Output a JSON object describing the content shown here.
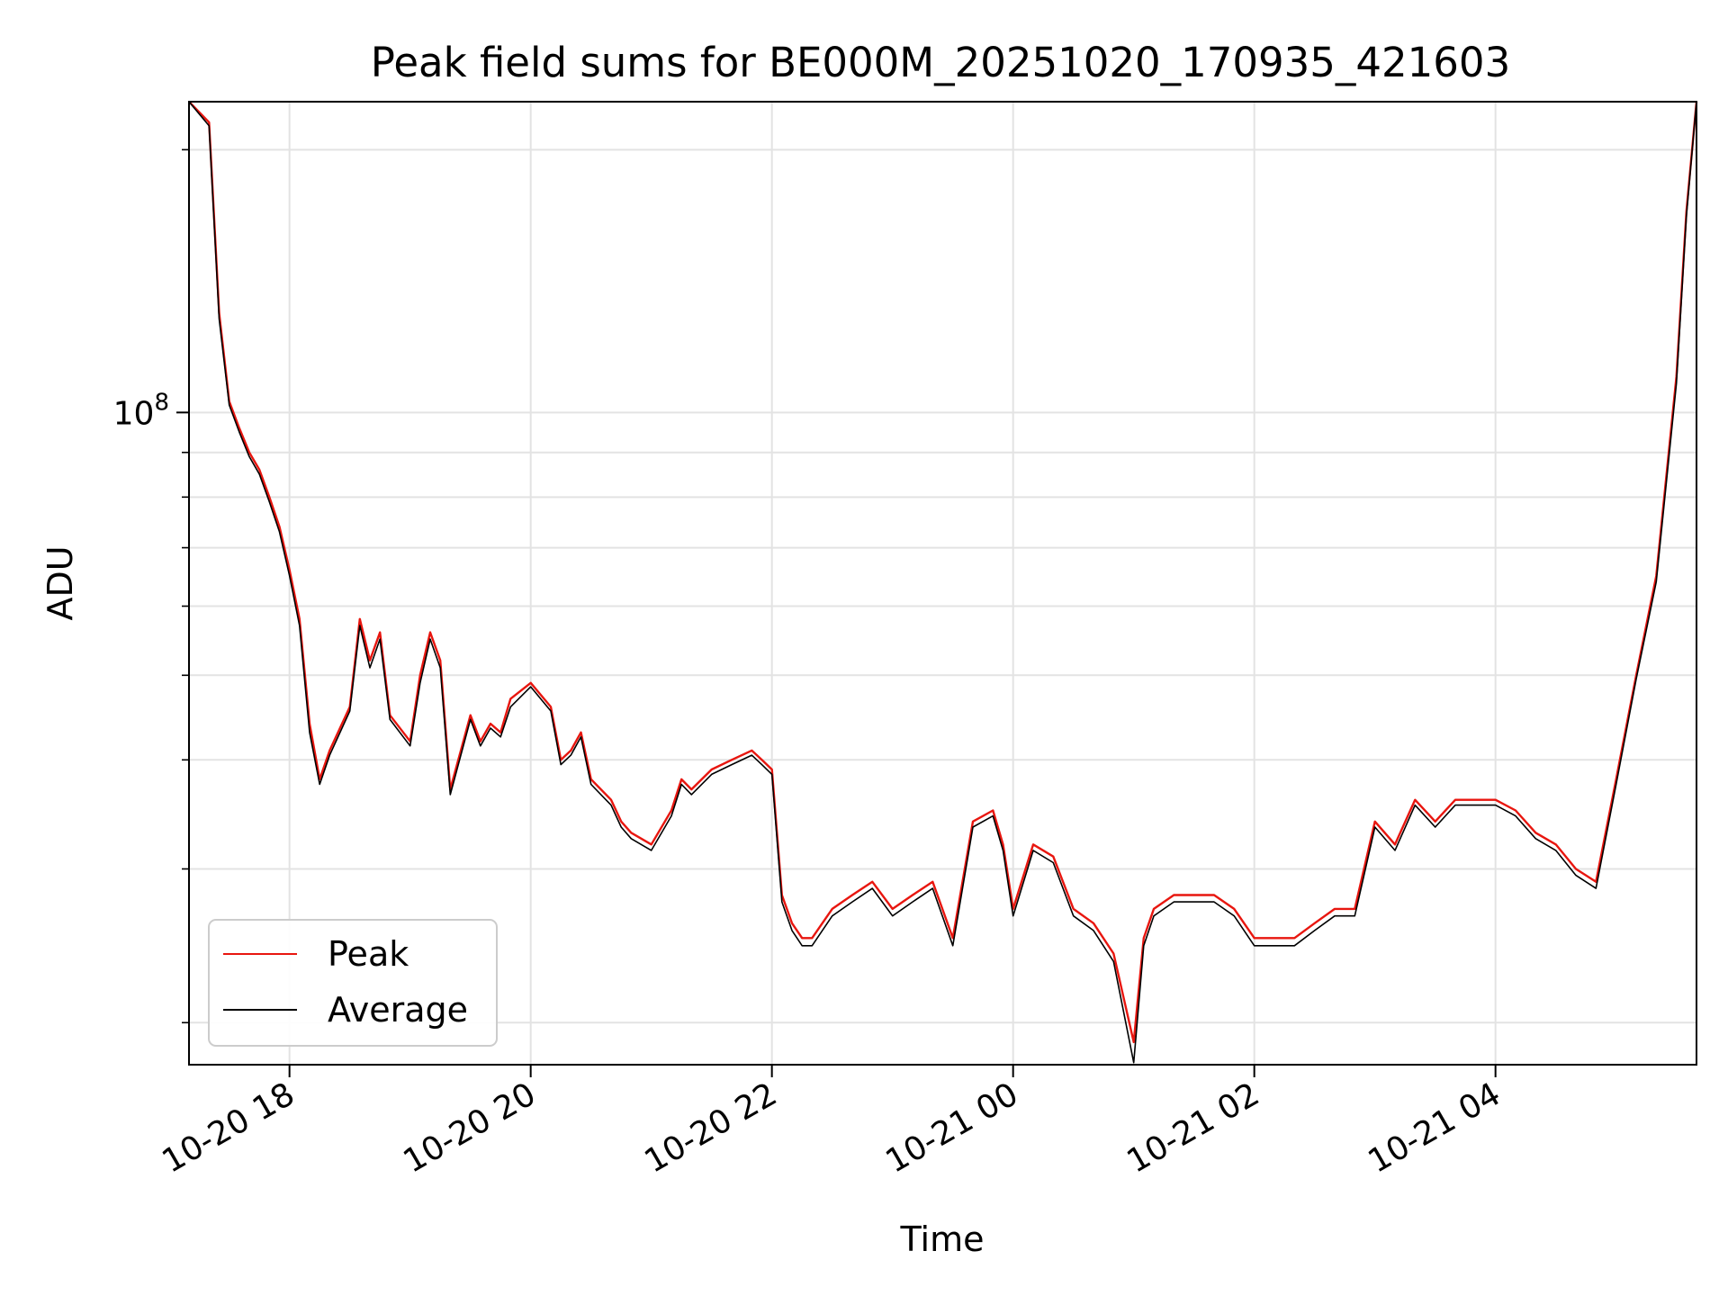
{
  "chart_data": {
    "type": "line",
    "title": "Peak field sums for BE000M_20251020_170935_421603",
    "xlabel": "Time",
    "ylabel": "ADU",
    "y_scale": "log",
    "xlim": [
      "2025-10-20 17:10",
      "2025-10-21 05:40"
    ],
    "ylim": [
      17900000,
      227000000
    ],
    "grid": true,
    "legend_position": "lower-left",
    "x_ticks": [
      "10-20 18",
      "10-20 20",
      "10-20 22",
      "10-21 00",
      "10-21 02",
      "10-21 04"
    ],
    "x_tick_times": [
      "2025-10-20 18:00",
      "2025-10-20 20:00",
      "2025-10-20 22:00",
      "2025-10-21 00:00",
      "2025-10-21 02:00",
      "2025-10-21 04:00"
    ],
    "y_major_ticks": [
      {
        "value": 100000000,
        "label_base": "10",
        "label_exp": "8"
      }
    ],
    "y_minor_ticks": [
      20000000,
      30000000,
      40000000,
      50000000,
      60000000,
      70000000,
      80000000,
      90000000,
      200000000
    ],
    "colors": {
      "peak": "#e8160f",
      "average": "#000000"
    },
    "series": [
      {
        "name": "Peak",
        "color": "#e8160f",
        "x": [
          "2025-10-20 17:10",
          "2025-10-20 17:20",
          "2025-10-20 17:25",
          "2025-10-20 17:30",
          "2025-10-20 17:35",
          "2025-10-20 17:40",
          "2025-10-20 17:45",
          "2025-10-20 17:50",
          "2025-10-20 17:55",
          "2025-10-20 18:00",
          "2025-10-20 18:05",
          "2025-10-20 18:10",
          "2025-10-20 18:15",
          "2025-10-20 18:20",
          "2025-10-20 18:30",
          "2025-10-20 18:35",
          "2025-10-20 18:40",
          "2025-10-20 18:45",
          "2025-10-20 18:50",
          "2025-10-20 19:00",
          "2025-10-20 19:05",
          "2025-10-20 19:10",
          "2025-10-20 19:15",
          "2025-10-20 19:20",
          "2025-10-20 19:30",
          "2025-10-20 19:35",
          "2025-10-20 19:40",
          "2025-10-20 19:45",
          "2025-10-20 19:50",
          "2025-10-20 20:00",
          "2025-10-20 20:10",
          "2025-10-20 20:15",
          "2025-10-20 20:20",
          "2025-10-20 20:25",
          "2025-10-20 20:30",
          "2025-10-20 20:40",
          "2025-10-20 20:45",
          "2025-10-20 20:50",
          "2025-10-20 21:00",
          "2025-10-20 21:10",
          "2025-10-20 21:15",
          "2025-10-20 21:20",
          "2025-10-20 21:30",
          "2025-10-20 21:40",
          "2025-10-20 21:50",
          "2025-10-20 21:55",
          "2025-10-20 22:00",
          "2025-10-20 22:05",
          "2025-10-20 22:10",
          "2025-10-20 22:15",
          "2025-10-20 22:20",
          "2025-10-20 22:30",
          "2025-10-20 22:40",
          "2025-10-20 22:50",
          "2025-10-20 23:00",
          "2025-10-20 23:10",
          "2025-10-20 23:20",
          "2025-10-20 23:30",
          "2025-10-20 23:40",
          "2025-10-20 23:50",
          "2025-10-20 23:55",
          "2025-10-21 00:00",
          "2025-10-21 00:10",
          "2025-10-21 00:20",
          "2025-10-21 00:30",
          "2025-10-21 00:40",
          "2025-10-21 00:50",
          "2025-10-21 01:00",
          "2025-10-21 01:05",
          "2025-10-21 01:10",
          "2025-10-21 01:20",
          "2025-10-21 01:30",
          "2025-10-21 01:40",
          "2025-10-21 01:50",
          "2025-10-21 02:00",
          "2025-10-21 02:10",
          "2025-10-21 02:20",
          "2025-10-21 02:30",
          "2025-10-21 02:40",
          "2025-10-21 02:50",
          "2025-10-21 03:00",
          "2025-10-21 03:10",
          "2025-10-21 03:20",
          "2025-10-21 03:30",
          "2025-10-21 03:40",
          "2025-10-21 03:50",
          "2025-10-21 04:00",
          "2025-10-21 04:10",
          "2025-10-21 04:20",
          "2025-10-21 04:30",
          "2025-10-21 04:40",
          "2025-10-21 04:50",
          "2025-10-21 05:00",
          "2025-10-21 05:10",
          "2025-10-21 05:20",
          "2025-10-21 05:30",
          "2025-10-21 05:35",
          "2025-10-21 05:40"
        ],
        "values": [
          227000000,
          215000000,
          130000000,
          103000000,
          96000000,
          90000000,
          86000000,
          80000000,
          74000000,
          66000000,
          58000000,
          44000000,
          38000000,
          41000000,
          46000000,
          58000000,
          52000000,
          56000000,
          45000000,
          42000000,
          50000000,
          56000000,
          52000000,
          37000000,
          45000000,
          42000000,
          44000000,
          43000000,
          47000000,
          49000000,
          46000000,
          40000000,
          41000000,
          43000000,
          38000000,
          36000000,
          34000000,
          33000000,
          32000000,
          35000000,
          38000000,
          37000000,
          39000000,
          40000000,
          41000000,
          40000000,
          39000000,
          28000000,
          26000000,
          25000000,
          25000000,
          27000000,
          28000000,
          29000000,
          27000000,
          28000000,
          29000000,
          25000000,
          34000000,
          35000000,
          32000000,
          27000000,
          32000000,
          31000000,
          27000000,
          26000000,
          24000000,
          19000000,
          25000000,
          27000000,
          28000000,
          28000000,
          28000000,
          27000000,
          25000000,
          25000000,
          25000000,
          26000000,
          27000000,
          27000000,
          34000000,
          32000000,
          36000000,
          34000000,
          36000000,
          36000000,
          36000000,
          35000000,
          33000000,
          32000000,
          30000000,
          29000000,
          38000000,
          50000000,
          65000000,
          110000000,
          170000000,
          227000000
        ]
      },
      {
        "name": "Average",
        "color": "#000000",
        "x": [
          "2025-10-20 17:10",
          "2025-10-20 17:20",
          "2025-10-20 17:25",
          "2025-10-20 17:30",
          "2025-10-20 17:35",
          "2025-10-20 17:40",
          "2025-10-20 17:45",
          "2025-10-20 17:50",
          "2025-10-20 17:55",
          "2025-10-20 18:00",
          "2025-10-20 18:05",
          "2025-10-20 18:10",
          "2025-10-20 18:15",
          "2025-10-20 18:20",
          "2025-10-20 18:30",
          "2025-10-20 18:35",
          "2025-10-20 18:40",
          "2025-10-20 18:45",
          "2025-10-20 18:50",
          "2025-10-20 19:00",
          "2025-10-20 19:05",
          "2025-10-20 19:10",
          "2025-10-20 19:15",
          "2025-10-20 19:20",
          "2025-10-20 19:30",
          "2025-10-20 19:35",
          "2025-10-20 19:40",
          "2025-10-20 19:45",
          "2025-10-20 19:50",
          "2025-10-20 20:00",
          "2025-10-20 20:10",
          "2025-10-20 20:15",
          "2025-10-20 20:20",
          "2025-10-20 20:25",
          "2025-10-20 20:30",
          "2025-10-20 20:40",
          "2025-10-20 20:45",
          "2025-10-20 20:50",
          "2025-10-20 21:00",
          "2025-10-20 21:10",
          "2025-10-20 21:15",
          "2025-10-20 21:20",
          "2025-10-20 21:30",
          "2025-10-20 21:40",
          "2025-10-20 21:50",
          "2025-10-20 21:55",
          "2025-10-20 22:00",
          "2025-10-20 22:05",
          "2025-10-20 22:10",
          "2025-10-20 22:15",
          "2025-10-20 22:20",
          "2025-10-20 22:30",
          "2025-10-20 22:40",
          "2025-10-20 22:50",
          "2025-10-20 23:00",
          "2025-10-20 23:10",
          "2025-10-20 23:20",
          "2025-10-20 23:30",
          "2025-10-20 23:40",
          "2025-10-20 23:50",
          "2025-10-20 23:55",
          "2025-10-21 00:00",
          "2025-10-21 00:10",
          "2025-10-21 00:20",
          "2025-10-21 00:30",
          "2025-10-21 00:40",
          "2025-10-21 00:50",
          "2025-10-21 01:00",
          "2025-10-21 01:05",
          "2025-10-21 01:10",
          "2025-10-21 01:20",
          "2025-10-21 01:30",
          "2025-10-21 01:40",
          "2025-10-21 01:50",
          "2025-10-21 02:00",
          "2025-10-21 02:10",
          "2025-10-21 02:20",
          "2025-10-21 02:30",
          "2025-10-21 02:40",
          "2025-10-21 02:50",
          "2025-10-21 03:00",
          "2025-10-21 03:10",
          "2025-10-21 03:20",
          "2025-10-21 03:30",
          "2025-10-21 03:40",
          "2025-10-21 03:50",
          "2025-10-21 04:00",
          "2025-10-21 04:10",
          "2025-10-21 04:20",
          "2025-10-21 04:30",
          "2025-10-21 04:40",
          "2025-10-21 04:50",
          "2025-10-21 05:00",
          "2025-10-21 05:10",
          "2025-10-21 05:20",
          "2025-10-21 05:30",
          "2025-10-21 05:35",
          "2025-10-21 05:40"
        ],
        "values": [
          227000000,
          213000000,
          128000000,
          102000000,
          95000000,
          89000000,
          85000000,
          79000000,
          73000000,
          65000000,
          57000000,
          43000000,
          37500000,
          40500000,
          45500000,
          57000000,
          51000000,
          55000000,
          44500000,
          41500000,
          49000000,
          55000000,
          51000000,
          36500000,
          44500000,
          41500000,
          43500000,
          42500000,
          46000000,
          48500000,
          45500000,
          39500000,
          40500000,
          42500000,
          37500000,
          35500000,
          33500000,
          32500000,
          31500000,
          34500000,
          37500000,
          36500000,
          38500000,
          39500000,
          40500000,
          39500000,
          38500000,
          27500000,
          25500000,
          24500000,
          24500000,
          26500000,
          27500000,
          28500000,
          26500000,
          27500000,
          28500000,
          24500000,
          33500000,
          34500000,
          31500000,
          26500000,
          31500000,
          30500000,
          26500000,
          25500000,
          23500000,
          18000000,
          24500000,
          26500000,
          27500000,
          27500000,
          27500000,
          26500000,
          24500000,
          24500000,
          24500000,
          25500000,
          26500000,
          26500000,
          33500000,
          31500000,
          35500000,
          33500000,
          35500000,
          35500000,
          35500000,
          34500000,
          32500000,
          31500000,
          29500000,
          28500000,
          37500000,
          49500000,
          64000000,
          108000000,
          168000000,
          227000000
        ]
      }
    ]
  }
}
